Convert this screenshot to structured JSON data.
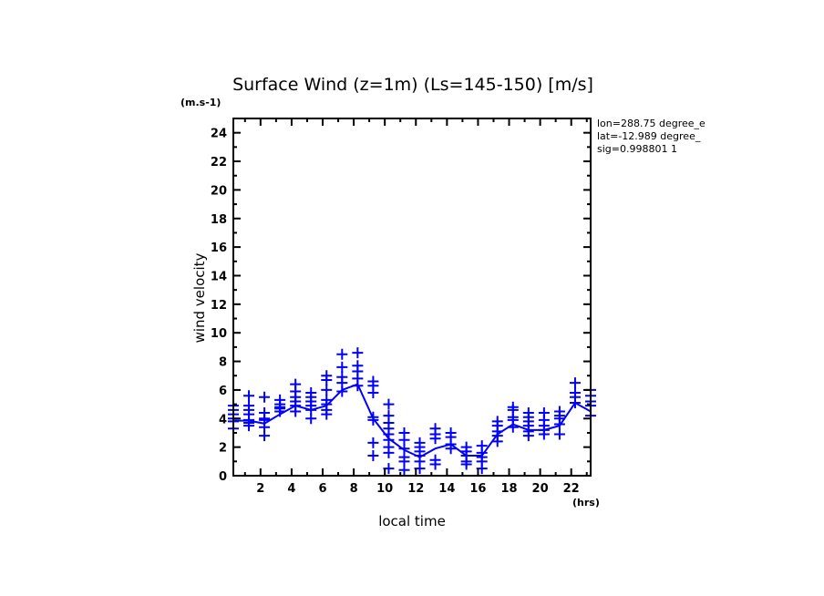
{
  "chart_data": {
    "type": "line",
    "title": "Surface Wind (z=1m) (Ls=145-150) [m/s]",
    "ylabel": "wind velocity",
    "yunits": "(m.s-1)",
    "xlabel": "local time",
    "xunits": "(hrs)",
    "xlim": [
      0.25,
      23.25
    ],
    "ylim": [
      0,
      25
    ],
    "xticks": [
      2,
      4,
      6,
      8,
      10,
      12,
      14,
      16,
      18,
      20,
      22
    ],
    "yticks": [
      0,
      2,
      4,
      6,
      8,
      10,
      12,
      14,
      16,
      18,
      20,
      22,
      24
    ],
    "grid": false,
    "annotations": [
      "lon=288.75 degree_e",
      "lat=-12.989 degree_",
      "sig=0.998801 1"
    ],
    "series_color": "#0000ff",
    "mean": {
      "name": "mean",
      "x": [
        0.25,
        1.25,
        2.25,
        3.25,
        4.25,
        5.25,
        6.25,
        7.25,
        8.25,
        9.25,
        10.25,
        11.25,
        12.25,
        13.25,
        14.25,
        15.25,
        16.25,
        17.25,
        18.25,
        19.25,
        20.25,
        21.25,
        22.25,
        23.25
      ],
      "y": [
        3.85,
        3.85,
        3.65,
        4.3,
        4.9,
        4.6,
        4.9,
        6.0,
        6.4,
        4.0,
        2.6,
        1.8,
        1.3,
        1.9,
        2.2,
        1.4,
        1.4,
        2.9,
        3.6,
        3.2,
        3.2,
        3.5,
        5.1,
        4.5
      ]
    },
    "samples": [
      [
        3.3,
        3.8,
        4.0,
        4.3,
        4.6,
        4.9
      ],
      [
        3.5,
        3.7,
        3.9,
        4.3,
        4.6,
        4.9,
        5.6
      ],
      [
        2.8,
        3.4,
        3.9,
        4.0,
        4.4,
        5.5
      ],
      [
        4.5,
        4.7,
        4.8,
        5.0,
        5.3
      ],
      [
        4.5,
        4.9,
        5.2,
        5.5,
        5.9,
        6.4
      ],
      [
        4.0,
        4.6,
        4.9,
        5.2,
        5.5,
        5.8
      ],
      [
        4.3,
        4.6,
        5.0,
        5.3,
        6.0,
        6.7,
        7.0
      ],
      [
        5.9,
        6.5,
        6.9,
        7.6,
        8.5
      ],
      [
        6.3,
        6.8,
        7.3,
        7.7,
        8.6
      ],
      [
        1.4,
        2.3,
        3.9,
        4.1,
        5.8,
        6.3,
        6.6
      ],
      [
        0.5,
        1.6,
        2.0,
        2.5,
        2.9,
        3.3,
        3.7,
        4.2,
        5.0
      ],
      [
        0.4,
        1.0,
        1.3,
        1.9,
        2.5,
        3.0
      ],
      [
        0.5,
        1.0,
        1.4,
        1.7,
        2.0,
        2.3
      ],
      [
        0.8,
        1.1,
        2.6,
        2.9,
        3.3
      ],
      [
        1.9,
        2.2,
        2.7,
        3.0
      ],
      [
        0.8,
        1.0,
        1.4,
        1.7,
        2.0
      ],
      [
        0.5,
        1.0,
        1.3,
        1.6,
        2.1
      ],
      [
        2.4,
        2.8,
        3.1,
        3.5,
        3.8
      ],
      [
        3.4,
        3.9,
        4.1,
        4.6,
        4.8
      ],
      [
        2.8,
        3.1,
        3.5,
        3.8,
        4.1,
        4.4
      ],
      [
        2.9,
        3.2,
        3.5,
        3.9,
        4.4
      ],
      [
        2.9,
        3.6,
        4.0,
        4.2,
        4.5
      ],
      [
        5.1,
        5.5,
        5.8,
        6.5
      ],
      [
        4.2,
        4.9,
        5.2,
        5.6,
        6.0
      ]
    ]
  }
}
